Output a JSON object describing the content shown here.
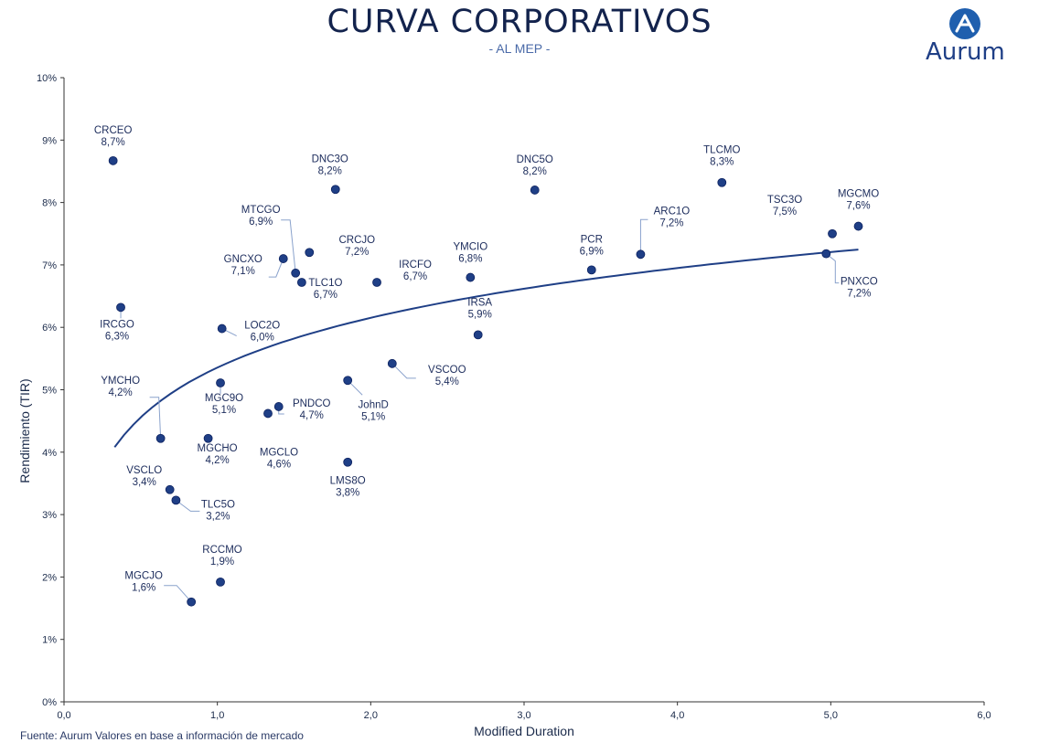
{
  "header": {
    "title": "CURVA CORPORATIVOS",
    "subtitle": "- AL MEP -",
    "logo_text": "Aurum"
  },
  "source": "Fuente: Aurum Valores en base a información de mercado",
  "colors": {
    "point": "#1f3f86",
    "curve": "#1f3f86",
    "title": "#13234d",
    "subtitle": "#4a6aa8"
  },
  "chart_data": {
    "type": "scatter",
    "xlabel": "Modified Duration",
    "ylabel": "Rendimiento (TIR)",
    "xlim": [
      0,
      6
    ],
    "ylim": [
      0,
      10
    ],
    "x_ticks": [
      "0,0",
      "1,0",
      "2,0",
      "3,0",
      "4,0",
      "5,0",
      "6,0"
    ],
    "y_ticks": [
      "0%",
      "1%",
      "2%",
      "3%",
      "4%",
      "5%",
      "6%",
      "7%",
      "8%",
      "9%",
      "10%"
    ],
    "grid": false,
    "trendline": {
      "type": "logarithmic",
      "x_range": [
        0.33,
        5.18
      ]
    },
    "points": [
      {
        "name": "CRCEO",
        "value_label": "8,7%",
        "x": 0.32,
        "y": 8.67
      },
      {
        "name": "IRCGO",
        "value_label": "6,3%",
        "x": 0.37,
        "y": 6.32
      },
      {
        "name": "YMCHO",
        "value_label": "4,2%",
        "x": 0.63,
        "y": 4.22
      },
      {
        "name": "VSCLO",
        "value_label": "3,4%",
        "x": 0.69,
        "y": 3.4
      },
      {
        "name": "TLC5O",
        "value_label": "3,2%",
        "x": 0.73,
        "y": 3.23
      },
      {
        "name": "MGCJO",
        "value_label": "1,6%",
        "x": 0.83,
        "y": 1.6
      },
      {
        "name": "MGCHO",
        "value_label": "4,2%",
        "x": 0.94,
        "y": 4.22
      },
      {
        "name": "RCCMO",
        "value_label": "1,9%",
        "x": 1.02,
        "y": 1.92
      },
      {
        "name": "MGC9O",
        "value_label": "5,1%",
        "x": 1.02,
        "y": 5.11
      },
      {
        "name": "LOC2O",
        "value_label": "6,0%",
        "x": 1.03,
        "y": 5.98
      },
      {
        "name": "MGCLO",
        "value_label": "4,6%",
        "x": 1.33,
        "y": 4.62
      },
      {
        "name": "PNDCO",
        "value_label": "4,7%",
        "x": 1.4,
        "y": 4.73
      },
      {
        "name": "GNCXO",
        "value_label": "7,1%",
        "x": 1.43,
        "y": 7.1
      },
      {
        "name": "MTCGO",
        "value_label": "6,9%",
        "x": 1.51,
        "y": 6.87
      },
      {
        "name": "TLC1O",
        "value_label": "6,7%",
        "x": 1.55,
        "y": 6.72
      },
      {
        "name": "CRCJO",
        "value_label": "7,2%",
        "x": 1.6,
        "y": 7.2
      },
      {
        "name": "DNC3O",
        "value_label": "8,2%",
        "x": 1.77,
        "y": 8.21
      },
      {
        "name": "JohnD",
        "value_label": "5,1%",
        "x": 1.85,
        "y": 5.15
      },
      {
        "name": "LMS8O",
        "value_label": "3,8%",
        "x": 1.85,
        "y": 3.84
      },
      {
        "name": "IRCFO",
        "value_label": "6,7%",
        "x": 2.04,
        "y": 6.72
      },
      {
        "name": "VSCOO",
        "value_label": "5,4%",
        "x": 2.14,
        "y": 5.42
      },
      {
        "name": "YMCIO",
        "value_label": "6,8%",
        "x": 2.65,
        "y": 6.8
      },
      {
        "name": "IRSA",
        "value_label": "5,9%",
        "x": 2.7,
        "y": 5.88
      },
      {
        "name": "DNC5O",
        "value_label": "8,2%",
        "x": 3.07,
        "y": 8.2
      },
      {
        "name": "PCR",
        "value_label": "6,9%",
        "x": 3.44,
        "y": 6.92
      },
      {
        "name": "ARC1O",
        "value_label": "7,2%",
        "x": 3.76,
        "y": 7.17
      },
      {
        "name": "TLCMO",
        "value_label": "8,3%",
        "x": 4.29,
        "y": 8.32
      },
      {
        "name": "PNXCO",
        "value_label": "7,2%",
        "x": 4.97,
        "y": 7.18
      },
      {
        "name": "TSC3O",
        "value_label": "7,5%",
        "x": 5.01,
        "y": 7.5
      },
      {
        "name": "MGCMO",
        "value_label": "7,6%",
        "x": 5.18,
        "y": 7.62
      }
    ]
  }
}
